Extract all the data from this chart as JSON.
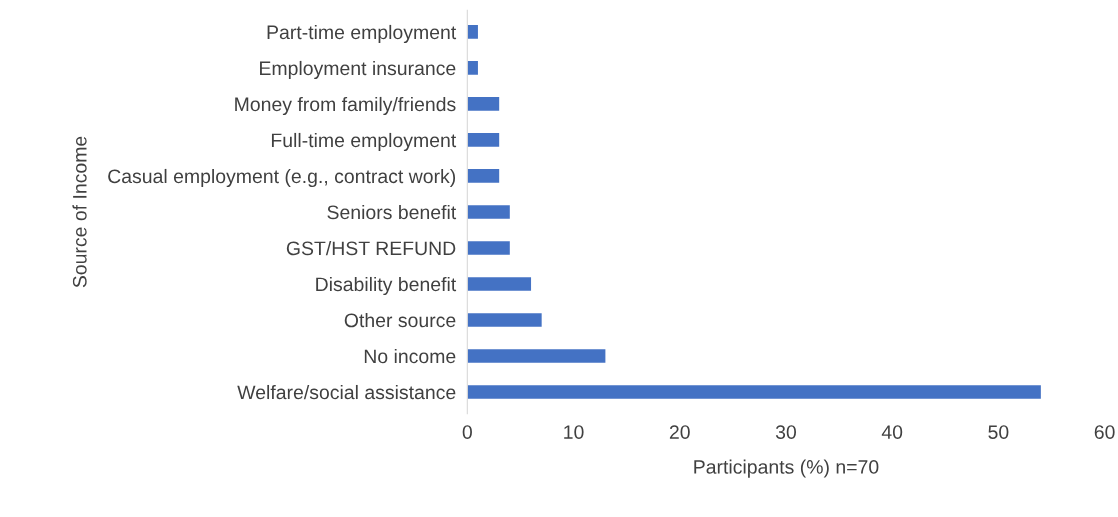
{
  "chart_data": {
    "type": "bar",
    "orientation": "horizontal",
    "xlabel": "Participants (%) n=70",
    "ylabel": "Source of Income",
    "categories": [
      "Part-time employment",
      "Employment insurance",
      "Money from family/friends",
      "Full-time employment",
      "Casual employment (e.g., contract work)",
      "Seniors benefit",
      "GST/HST REFUND",
      "Disability benefit",
      "Other source",
      "No income",
      "Welfare/social assistance"
    ],
    "values": [
      1,
      1,
      3,
      3,
      3,
      4,
      4,
      6,
      7,
      13,
      54
    ],
    "color": "#4472c4",
    "xlim": [
      0,
      60
    ],
    "xticks": [
      0,
      10,
      20,
      30,
      40,
      50,
      60
    ],
    "grid": false,
    "legend": false
  }
}
